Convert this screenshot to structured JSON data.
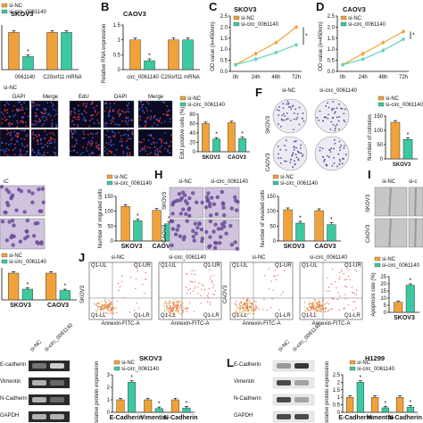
{
  "panels": {
    "A": {
      "letter": "",
      "title": "SKOV3",
      "xcats": [
        "0061140",
        "C20orf11 mRNA"
      ],
      "legend": [
        "si-NC",
        "si-circ_0061140"
      ]
    },
    "B": {
      "letter": "B",
      "title": "CAOV3",
      "xcats": [
        "circ_0061140",
        "C20orf11 mRNA"
      ],
      "legend": [
        "si-NC",
        "si-circ_0061140"
      ],
      "ylabel": "Relative RNA expression"
    },
    "C": {
      "letter": "C",
      "title": "SKOV3",
      "ylabel": "OD value (λ=450nm)",
      "xticks": [
        "0h",
        "24h",
        "48h",
        "72h"
      ],
      "legend": [
        "si-NC",
        "si-circ_0061140"
      ]
    },
    "D": {
      "letter": "D",
      "title": "CAOV3",
      "ylabel": "OD value (λ=450nm)",
      "xticks": [
        "0h",
        "24h",
        "48h",
        "72h"
      ],
      "legend": [
        "si-NC",
        "si-circ_0061140"
      ]
    },
    "E": {
      "headers": [
        "DAPI",
        "Merge",
        "EdU",
        "DAPI",
        "Merge"
      ],
      "row_label": "si-NC",
      "ylabel": "EdU positive cells (%)",
      "xcats": [
        "SKOV3",
        "CAOV3"
      ],
      "legend": [
        "si-NC",
        "si-circ_0061140"
      ]
    },
    "F": {
      "letter": "F",
      "cols": [
        "si-NC",
        "si-circ_0061140"
      ],
      "rows": [
        "SKOV3",
        "CAOV3"
      ],
      "ylabel": "Number of colonies",
      "xcats": [
        "SKOV3"
      ],
      "legend": [
        "si-NC",
        "si-circ_0061140"
      ]
    },
    "G": {
      "letter": "",
      "header": "iC",
      "ylabel": "Number of migrated cells",
      "xcats": [
        "SKOV3",
        "CAOV3"
      ],
      "legend": [
        "si-NC",
        "si-circ_0061140"
      ]
    },
    "H": {
      "letter": "H",
      "cols": [
        "si-NC",
        "si-circ_0061140"
      ],
      "rows": [
        "SKOV3",
        "CAOV3"
      ],
      "ylabel": "Number of invaded cells",
      "xcats": [
        "SKOV3",
        "CAOV3"
      ],
      "legend": [
        "si-NC",
        "si-circ_0061140"
      ]
    },
    "I": {
      "letter": "I",
      "cols": [
        "si-NC",
        "si-c"
      ],
      "rows": [
        "SKOV3",
        "CAOV3"
      ]
    },
    "J": {
      "letter": "J",
      "cols": [
        "si-NC",
        "si-circ_0061140",
        "si-NC",
        "si-circ_0061140"
      ],
      "rows": [
        "SKOV3",
        "CAOV3"
      ],
      "quad": [
        "Q1-UL",
        "Q1-UR",
        "Q1-LL",
        "Q1-LR"
      ],
      "xaxis": "Annexin-FITC-A",
      "ylabel": "Apoptosis rate (%)",
      "xcats": [
        "SKOV3"
      ],
      "legend": [
        "si-NC",
        "si-circ_0061140"
      ]
    },
    "K": {
      "letter": "",
      "xcats": [
        "SKOV3",
        "CAOV3"
      ],
      "legend": [
        "si-NC",
        "si-circ_0061140"
      ]
    },
    "KB": {
      "lanes": [
        "si-NC",
        "si-circ_0061140"
      ],
      "bands": [
        "E-cadherin",
        "Vimentin",
        "N-Cadherin",
        "GAPDH"
      ],
      "title": "SKOV3",
      "ylabel": "Relative protein expression",
      "xcats": [
        "E-Cadherin",
        "Vimentin",
        "N-Cadherin"
      ],
      "legend": [
        "si-NC",
        "si-circ_0061140"
      ]
    },
    "L": {
      "letter": "L",
      "lanes": [
        "si-NC",
        "si-circ_0061140"
      ],
      "bands": [
        "E-Cadherin",
        "Vimentin",
        "N-Cadherin",
        "GAPDH"
      ],
      "title": "H1299",
      "ylabel": "Relative protein expression",
      "xcats": [
        "E-Cadherin",
        "Vimentin",
        "N-Cadherin"
      ],
      "legend": [
        "si-NC",
        "si-circ_0061140"
      ]
    }
  },
  "colors": {
    "nc": "#f0a23a",
    "si": "#3cc8a0",
    "line_nc": "#f0a23a",
    "line_si": "#5fd6b8"
  },
  "sig": "*",
  "chart_data": [
    {
      "type": "bar",
      "panel": "A",
      "categories": [
        "0061140",
        "C20orf11 mRNA"
      ],
      "series": [
        {
          "name": "si-NC",
          "values": [
            1.0,
            1.0
          ]
        },
        {
          "name": "si-circ_0061140",
          "values": [
            0.35,
            1.0
          ]
        }
      ]
    },
    {
      "type": "bar",
      "panel": "B",
      "categories": [
        "circ_0061140",
        "C20orf11 mRNA"
      ],
      "ylim": [
        0,
        1.5
      ],
      "yticks": [
        0,
        0.5,
        1.0,
        1.5
      ],
      "series": [
        {
          "name": "si-NC",
          "values": [
            1.0,
            1.0
          ]
        },
        {
          "name": "si-circ_0061140",
          "values": [
            0.3,
            1.0
          ]
        }
      ]
    },
    {
      "type": "line",
      "panel": "C",
      "x": [
        "0h",
        "24h",
        "48h",
        "72h"
      ],
      "ylim": [
        0,
        2.5
      ],
      "yticks": [
        0,
        0.5,
        1.0,
        1.5,
        2.0,
        2.5
      ],
      "series": [
        {
          "name": "si-NC",
          "values": [
            0.3,
            0.8,
            1.3,
            2.0
          ]
        },
        {
          "name": "si-circ_0061140",
          "values": [
            0.3,
            0.55,
            0.85,
            1.2
          ]
        }
      ]
    },
    {
      "type": "line",
      "panel": "D",
      "x": [
        "0h",
        "24h",
        "48h",
        "72h"
      ],
      "ylim": [
        0,
        2.5
      ],
      "yticks": [
        0,
        0.5,
        1.0,
        1.5,
        2.0,
        2.5
      ],
      "series": [
        {
          "name": "si-NC",
          "values": [
            0.3,
            0.8,
            1.3,
            1.8
          ]
        },
        {
          "name": "si-circ_0061140",
          "values": [
            0.3,
            0.55,
            0.95,
            1.45
          ]
        }
      ]
    },
    {
      "type": "bar",
      "panel": "E",
      "categories": [
        "SKOV3",
        "CAOV3"
      ],
      "ylim": [
        0,
        80
      ],
      "yticks": [
        0,
        20,
        40,
        60,
        80
      ],
      "series": [
        {
          "name": "si-NC",
          "values": [
            60,
            62
          ]
        },
        {
          "name": "si-circ_0061140",
          "values": [
            27,
            28
          ]
        }
      ]
    },
    {
      "type": "bar",
      "panel": "F",
      "categories": [
        "SKOV3"
      ],
      "ylim": [
        0,
        150
      ],
      "yticks": [
        0,
        50,
        100,
        150
      ],
      "series": [
        {
          "name": "si-NC",
          "values": [
            128
          ]
        },
        {
          "name": "si-circ_0061140",
          "values": [
            68
          ]
        }
      ]
    },
    {
      "type": "bar",
      "panel": "G",
      "categories": [
        "SKOV3",
        "CAOV3"
      ],
      "ylim": [
        0,
        150
      ],
      "yticks": [
        0,
        50,
        100,
        150
      ],
      "series": [
        {
          "name": "si-NC",
          "values": [
            116,
            103
          ]
        },
        {
          "name": "si-circ_0061140",
          "values": [
            68,
            58
          ]
        }
      ]
    },
    {
      "type": "bar",
      "panel": "H",
      "categories": [
        "SKOV3",
        "CAOV3"
      ],
      "ylim": [
        0,
        150
      ],
      "yticks": [
        0,
        50,
        100,
        150
      ],
      "series": [
        {
          "name": "si-NC",
          "values": [
            105,
            102
          ]
        },
        {
          "name": "si-circ_0061140",
          "values": [
            60,
            55
          ]
        }
      ]
    },
    {
      "type": "bar",
      "panel": "J",
      "categories": [
        "SKOV3"
      ],
      "ylim": [
        0,
        25
      ],
      "yticks": [
        0,
        5,
        10,
        15,
        20,
        25
      ],
      "series": [
        {
          "name": "si-NC",
          "values": [
            7
          ]
        },
        {
          "name": "si-circ_0061140",
          "values": [
            19
          ]
        }
      ]
    },
    {
      "type": "bar",
      "panel": "K",
      "categories": [
        "SKOV3",
        "CAOV3"
      ],
      "series": [
        {
          "name": "si-NC",
          "values": [
            1.0,
            1.0
          ]
        },
        {
          "name": "si-circ_0061140",
          "values": [
            0.4,
            0.35
          ]
        }
      ]
    },
    {
      "type": "bar",
      "panel": "KB",
      "categories": [
        "E-Cadherin",
        "Vimentin",
        "N-Cadherin"
      ],
      "ylim": [
        0,
        3
      ],
      "yticks": [
        0,
        1,
        2,
        3
      ],
      "series": [
        {
          "name": "si-NC",
          "values": [
            1.0,
            1.0,
            1.0
          ]
        },
        {
          "name": "si-circ_0061140",
          "values": [
            2.4,
            0.3,
            0.35
          ]
        }
      ]
    },
    {
      "type": "bar",
      "panel": "L",
      "categories": [
        "E-Cadherin",
        "Vimentin",
        "N-Cadherin"
      ],
      "ylim": [
        0,
        2.5
      ],
      "yticks": [
        0,
        0.5,
        1.0,
        1.5,
        2.0,
        2.5
      ],
      "series": [
        {
          "name": "si-NC",
          "values": [
            1.0,
            1.0,
            1.0
          ]
        },
        {
          "name": "si-circ_0061140",
          "values": [
            2.0,
            0.3,
            0.35
          ]
        }
      ]
    }
  ]
}
